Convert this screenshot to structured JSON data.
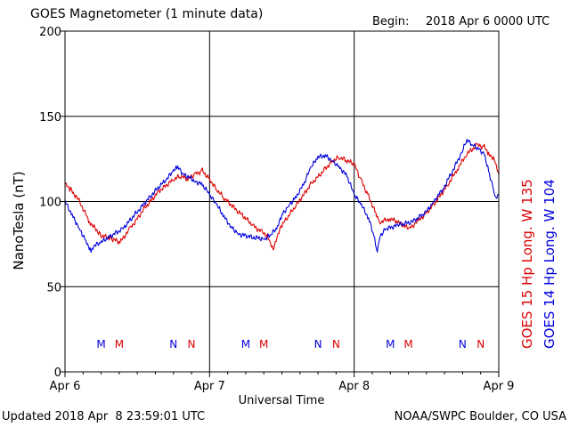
{
  "header": {
    "title": "GOES Magnetometer (1 minute data)",
    "begin_label": "Begin:",
    "begin_value": "2018 Apr 6 0000 UTC"
  },
  "footer": {
    "updated": "Updated 2018 Apr  8 23:59:01 UTC",
    "source": "NOAA/SWPC Boulder, CO USA"
  },
  "colors": {
    "goes15": "#dd0000",
    "goes14": "#0000dd",
    "grid": "#000000"
  },
  "markers": {
    "goes14": [
      {
        "label": "M",
        "day": 0.25
      },
      {
        "label": "N",
        "day": 0.75
      },
      {
        "label": "M",
        "day": 1.25
      },
      {
        "label": "N",
        "day": 1.75
      },
      {
        "label": "M",
        "day": 2.25
      },
      {
        "label": "N",
        "day": 2.75
      }
    ],
    "goes15": [
      {
        "label": "M",
        "day": 0.375
      },
      {
        "label": "N",
        "day": 0.875
      },
      {
        "label": "M",
        "day": 1.375
      },
      {
        "label": "N",
        "day": 1.875
      },
      {
        "label": "M",
        "day": 2.375
      },
      {
        "label": "N",
        "day": 2.875
      }
    ]
  },
  "chart_data": {
    "type": "line",
    "title": "GOES Magnetometer (1 minute data)",
    "xlabel": "Universal Time",
    "ylabel": "NanoTesla (nT)",
    "xlim": [
      0,
      3
    ],
    "ylim": [
      0,
      200
    ],
    "x_ticks": [
      {
        "value": 0,
        "label": "Apr 6"
      },
      {
        "value": 1,
        "label": "Apr 7"
      },
      {
        "value": 2,
        "label": "Apr 8"
      },
      {
        "value": 3,
        "label": "Apr 9"
      }
    ],
    "y_ticks": [
      0,
      50,
      100,
      150,
      200
    ],
    "grid": true,
    "series": [
      {
        "name": "GOES 15 Hp  Long. W 135",
        "color": "#dd0000",
        "points": [
          [
            0,
            110
          ],
          [
            0.04,
            107
          ],
          [
            0.1,
            100
          ],
          [
            0.17,
            88
          ],
          [
            0.25,
            80
          ],
          [
            0.33,
            78
          ],
          [
            0.38,
            76
          ],
          [
            0.45,
            84
          ],
          [
            0.55,
            96
          ],
          [
            0.65,
            106
          ],
          [
            0.75,
            113
          ],
          [
            0.8,
            115
          ],
          [
            0.85,
            113
          ],
          [
            0.9,
            116
          ],
          [
            0.95,
            118
          ],
          [
            1.0,
            113
          ],
          [
            1.05,
            107
          ],
          [
            1.1,
            102
          ],
          [
            1.2,
            94
          ],
          [
            1.3,
            86
          ],
          [
            1.36,
            82
          ],
          [
            1.4,
            80
          ],
          [
            1.44,
            72
          ],
          [
            1.46,
            78
          ],
          [
            1.5,
            86
          ],
          [
            1.6,
            98
          ],
          [
            1.7,
            110
          ],
          [
            1.8,
            119
          ],
          [
            1.85,
            124
          ],
          [
            1.9,
            126
          ],
          [
            1.95,
            124
          ],
          [
            2.0,
            122
          ],
          [
            2.05,
            112
          ],
          [
            2.1,
            103
          ],
          [
            2.15,
            93
          ],
          [
            2.18,
            88
          ],
          [
            2.25,
            90
          ],
          [
            2.3,
            88
          ],
          [
            2.38,
            84
          ],
          [
            2.45,
            89
          ],
          [
            2.55,
            98
          ],
          [
            2.65,
            110
          ],
          [
            2.72,
            120
          ],
          [
            2.78,
            128
          ],
          [
            2.85,
            133
          ],
          [
            2.9,
            132
          ],
          [
            2.93,
            128
          ],
          [
            2.97,
            125
          ],
          [
            3.0,
            116
          ]
        ]
      },
      {
        "name": "GOES 14 Hp  Long. W 104",
        "color": "#0000dd",
        "points": [
          [
            0,
            100
          ],
          [
            0.05,
            92
          ],
          [
            0.1,
            84
          ],
          [
            0.15,
            76
          ],
          [
            0.18,
            71
          ],
          [
            0.2,
            74
          ],
          [
            0.25,
            76
          ],
          [
            0.3,
            79
          ],
          [
            0.4,
            84
          ],
          [
            0.5,
            94
          ],
          [
            0.6,
            104
          ],
          [
            0.7,
            113
          ],
          [
            0.75,
            118
          ],
          [
            0.78,
            120
          ],
          [
            0.82,
            116
          ],
          [
            0.9,
            112
          ],
          [
            0.95,
            110
          ],
          [
            1.0,
            104
          ],
          [
            1.05,
            98
          ],
          [
            1.1,
            91
          ],
          [
            1.15,
            85
          ],
          [
            1.2,
            81
          ],
          [
            1.3,
            79
          ],
          [
            1.38,
            78
          ],
          [
            1.42,
            80
          ],
          [
            1.47,
            85
          ],
          [
            1.5,
            92
          ],
          [
            1.55,
            98
          ],
          [
            1.6,
            103
          ],
          [
            1.65,
            110
          ],
          [
            1.7,
            120
          ],
          [
            1.75,
            126
          ],
          [
            1.8,
            127
          ],
          [
            1.85,
            124
          ],
          [
            1.9,
            120
          ],
          [
            1.95,
            115
          ],
          [
            2.0,
            104
          ],
          [
            2.05,
            98
          ],
          [
            2.1,
            90
          ],
          [
            2.13,
            82
          ],
          [
            2.16,
            71
          ],
          [
            2.18,
            80
          ],
          [
            2.22,
            84
          ],
          [
            2.3,
            86
          ],
          [
            2.4,
            88
          ],
          [
            2.5,
            94
          ],
          [
            2.55,
            100
          ],
          [
            2.62,
            108
          ],
          [
            2.68,
            118
          ],
          [
            2.74,
            128
          ],
          [
            2.78,
            136
          ],
          [
            2.82,
            133
          ],
          [
            2.86,
            131
          ],
          [
            2.9,
            128
          ],
          [
            2.93,
            118
          ],
          [
            2.96,
            108
          ],
          [
            2.98,
            102
          ],
          [
            3.0,
            104
          ]
        ]
      }
    ]
  }
}
